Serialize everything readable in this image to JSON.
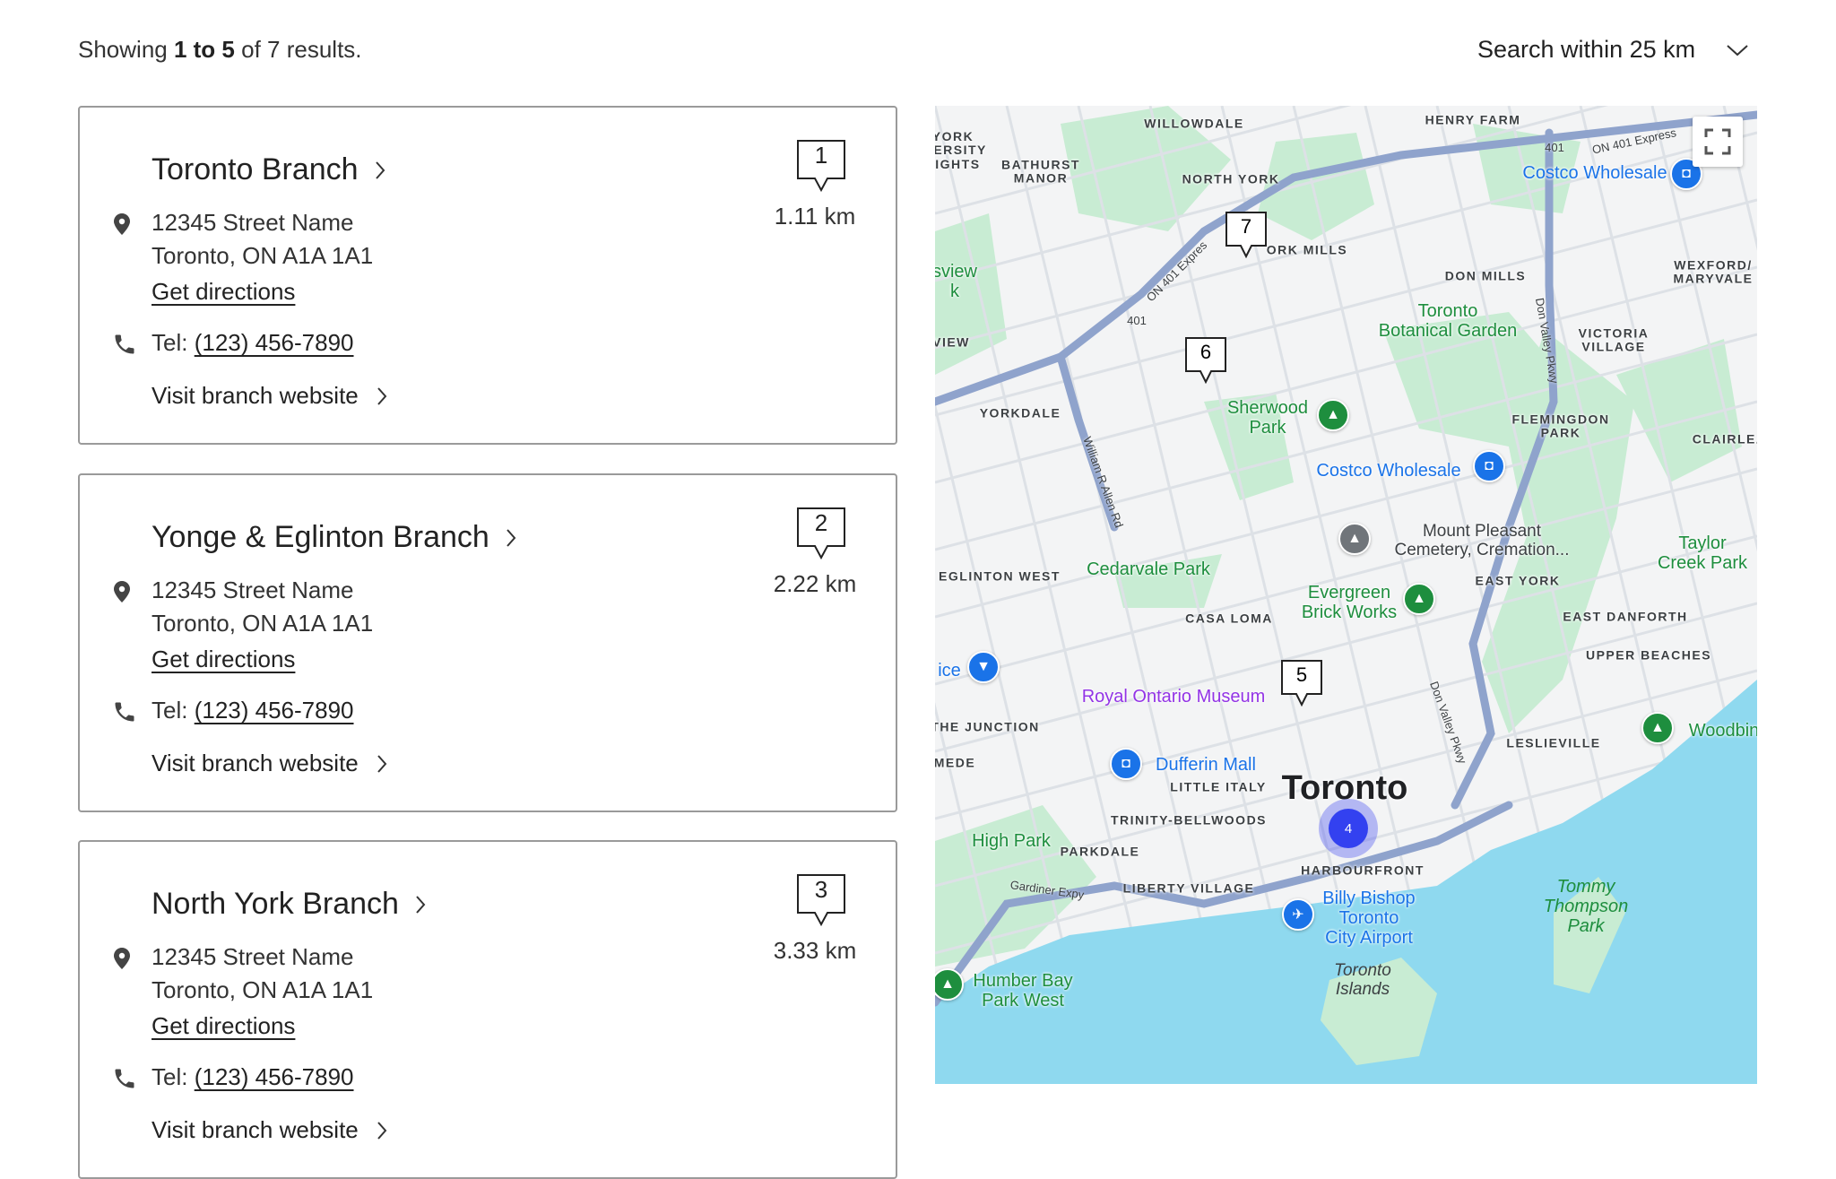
{
  "results": {
    "prefix": "Showing",
    "range": "1 to 5",
    "suffix": "of 7 results."
  },
  "search_radius": {
    "label": "Search within 25 km",
    "icon": "chevron-down-icon"
  },
  "branches": [
    {
      "number": "1",
      "name": "Toronto Branch",
      "address_line1": "12345 Street Name",
      "address_line2": "Toronto, ON A1A 1A1",
      "directions": "Get directions",
      "tel_label": "Tel:",
      "tel": "(123) 456-7890",
      "website": "Visit branch website",
      "distance": "1.11 km"
    },
    {
      "number": "2",
      "name": "Yonge & Eglinton Branch",
      "address_line1": "12345 Street Name",
      "address_line2": "Toronto, ON A1A 1A1",
      "directions": "Get directions",
      "tel_label": "Tel:",
      "tel": "(123) 456-7890",
      "website": "Visit branch website",
      "distance": "2.22 km"
    },
    {
      "number": "3",
      "name": "North York Branch",
      "address_line1": "12345 Street Name",
      "address_line2": "Toronto, ON A1A 1A1",
      "directions": "Get directions",
      "tel_label": "Tel:",
      "tel": "(123) 456-7890",
      "website": "Visit branch website",
      "distance": "3.33 km"
    }
  ],
  "map": {
    "colors": {
      "land": "#f3f4f5",
      "park": "#c8ecd3",
      "water": "#8fd9ef",
      "highway": "#8fa3cc",
      "cluster": "#3341f0"
    },
    "markers": [
      "7",
      "6",
      "5"
    ],
    "cluster": "4",
    "labels": {
      "willowdale": "WILLOWDALE",
      "henry_farm": "HENRY FARM",
      "north_york": "NORTH YORK",
      "bathurst_manor": "BATHURST\nMANOR",
      "york_university": "YORK\nIVERSITY\nEIGHTS",
      "york_mills": "ORK MILLS",
      "don_mills": "DON MILLS",
      "wexford": "WEXFORD/\nMARYVALE",
      "botanical": "Toronto\nBotanical Garden",
      "victoria_village": "VICTORIA\nVILLAGE",
      "yorkdale": "YORKDALE",
      "sherwood": "Sherwood\nPark",
      "flemingdon": "FLEMINGDON\nPARK",
      "clairlea": "CLAIRLEA-B",
      "costco1": "Costco Wholesale",
      "costco2": "Costco Wholesale",
      "mount_pleasant": "Mount Pleasant\nCemetery, Cremation...",
      "taylor_creek": "Taylor\nCreek Park",
      "eglinton_west": "EGLINTON WEST",
      "cedarvale": "Cedarvale Park",
      "east_york": "EAST YORK",
      "evergreen": "Evergreen\nBrick Works",
      "casa_loma": "CASA LOMA",
      "east_danforth": "EAST DANFORTH",
      "upper_beaches": "UPPER BEACHES",
      "rom": "Royal Ontario Museum",
      "junction": "THE JUNCTION",
      "leslieville": "LESLIEVILLE",
      "woodbine": "Woodbin",
      "dufferin": "Dufferin Mall",
      "little_italy": "LITTLE ITALY",
      "toronto": "Toronto",
      "trinity": "TRINITY-BELLWOODS",
      "high_park": "High Park",
      "parkdale": "PARKDALE",
      "harbourfront": "HARBOURFRONT",
      "liberty": "LIBERTY VILLAGE",
      "airport": "Billy Bishop\nToronto\nCity Airport",
      "tommy": "Tommy\nThompson\nPark",
      "islands": "Toronto\nIslands",
      "humber": "Humber Bay\nPark West",
      "mede": "MEDE",
      "sview": "sview\nk",
      "view": "VIEW",
      "ice": "ice",
      "hwy401a": "401",
      "hwy401b": "401",
      "on401": "ON 401 Express",
      "on401b": "ON 401 Expres",
      "allen": "William R Allen Rd",
      "dvp1": "Don Valley Pkwy",
      "dvp2": "Don Valley Pkwy",
      "gardiner": "Gardiner Expy"
    }
  }
}
